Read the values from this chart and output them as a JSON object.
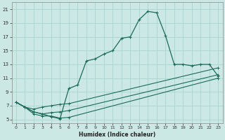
{
  "title": "",
  "xlabel": "Humidex (Indice chaleur)",
  "bg_color": "#cce8e4",
  "line_color": "#1a6b5a",
  "grid_color": "#aad4ce",
  "xlim": [
    -0.5,
    23.5
  ],
  "ylim": [
    4.5,
    22
  ],
  "xticks": [
    0,
    1,
    2,
    3,
    4,
    5,
    6,
    7,
    8,
    9,
    10,
    11,
    12,
    13,
    14,
    15,
    16,
    17,
    18,
    19,
    20,
    21,
    22,
    23
  ],
  "yticks": [
    5,
    7,
    9,
    11,
    13,
    15,
    17,
    19,
    21
  ],
  "line1_x": [
    0,
    1,
    2,
    3,
    4,
    5,
    6,
    7,
    8,
    9,
    10,
    11,
    12,
    13,
    14,
    15,
    16,
    17,
    18,
    19,
    20,
    21,
    22,
    23
  ],
  "line1_y": [
    7.5,
    6.8,
    6.1,
    5.8,
    5.4,
    5.1,
    9.5,
    10.0,
    13.5,
    13.8,
    14.5,
    15.0,
    16.8,
    17.0,
    19.5,
    20.7,
    20.5,
    17.2,
    13.0,
    13.0,
    12.8,
    13.0,
    13.0,
    11.3
  ],
  "line2_x": [
    0,
    1,
    2,
    3,
    4,
    5,
    6,
    23
  ],
  "line2_y": [
    7.5,
    6.8,
    6.5,
    6.8,
    7.0,
    7.2,
    7.3,
    12.5
  ],
  "line3_x": [
    0,
    1,
    2,
    3,
    4,
    5,
    6,
    23
  ],
  "line3_y": [
    7.5,
    6.8,
    6.1,
    5.8,
    6.0,
    6.1,
    6.3,
    11.5
  ],
  "line4_x": [
    0,
    1,
    2,
    3,
    4,
    5,
    6,
    23
  ],
  "line4_y": [
    7.5,
    6.8,
    5.8,
    5.5,
    5.5,
    5.2,
    5.3,
    11.0
  ]
}
